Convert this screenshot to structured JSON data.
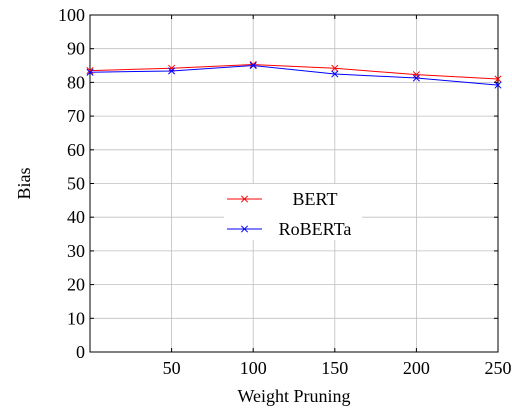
{
  "chart_data": {
    "type": "line",
    "xlabel": "Weight Pruning",
    "ylabel": "Bias",
    "x": [
      0,
      50,
      100,
      150,
      200,
      250
    ],
    "xlim": [
      0,
      250
    ],
    "ylim": [
      0,
      100
    ],
    "x_ticks": [
      50,
      100,
      150,
      200,
      250
    ],
    "y_ticks": [
      0,
      10,
      20,
      30,
      40,
      50,
      60,
      70,
      80,
      90,
      100
    ],
    "grid": true,
    "legend_position": "center",
    "series": [
      {
        "name": "BERT",
        "color": "#ff0000",
        "marker": "x",
        "values": [
          83.5,
          84.2,
          85.3,
          84.2,
          82.3,
          81.0
        ]
      },
      {
        "name": "RoBERTa",
        "color": "#0000ff",
        "marker": "x",
        "values": [
          83.0,
          83.4,
          85.0,
          82.5,
          81.3,
          79.2
        ]
      }
    ]
  }
}
